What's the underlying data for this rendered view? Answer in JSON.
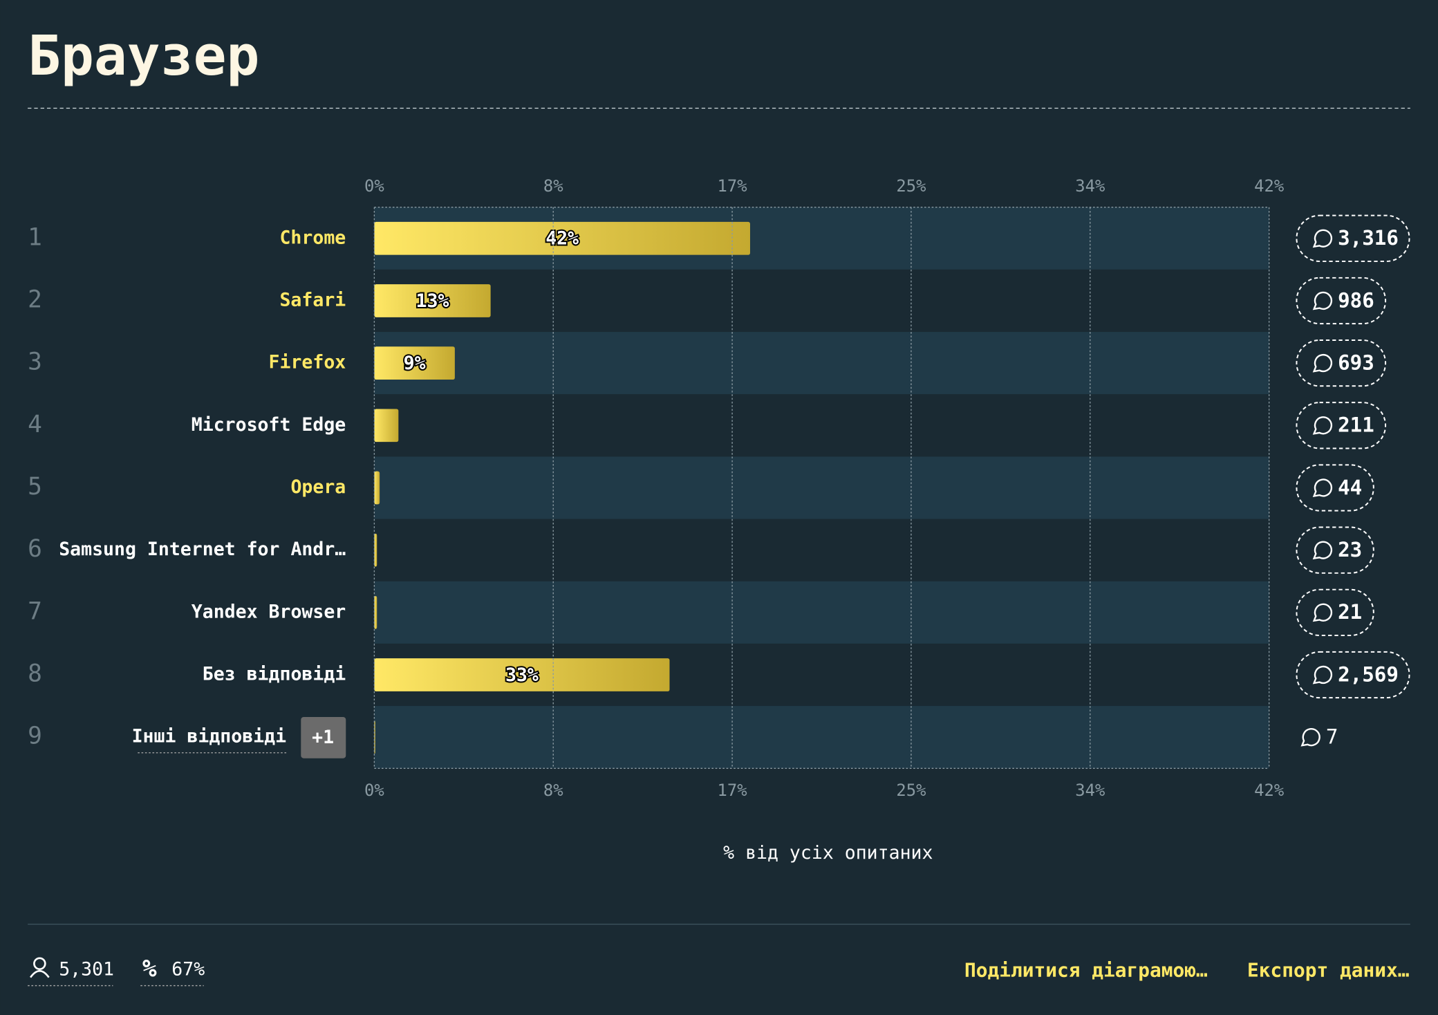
{
  "title": "Браузер",
  "chart_data": {
    "type": "bar",
    "orientation": "horizontal",
    "ranks": [
      "1",
      "2",
      "3",
      "4",
      "5",
      "6",
      "7",
      "8",
      "9"
    ],
    "categories": [
      "Chrome",
      "Safari",
      "Firefox",
      "Microsoft Edge",
      "Opera",
      "Samsung Internet for Andr…",
      "Yandex Browser",
      "Без відповіді",
      "Інші відповіді"
    ],
    "highlight": [
      true,
      true,
      true,
      false,
      true,
      false,
      false,
      false,
      false
    ],
    "values": [
      42,
      13,
      9,
      2.7,
      0.6,
      0.3,
      0.3,
      33,
      0.1
    ],
    "value_labels": [
      "42%",
      "13%",
      "9%",
      null,
      null,
      null,
      null,
      "33%",
      null
    ],
    "counts": [
      "3,316",
      "986",
      "693",
      "211",
      "44",
      "23",
      "21",
      "2,569",
      "7"
    ],
    "others_extra": "+1",
    "color": [
      "#ffe866",
      "#c4a930"
    ],
    "xlim": [
      0,
      100
    ],
    "xticks": [
      {
        "value": 0,
        "label": "0%"
      },
      {
        "value": 20,
        "label": "8%"
      },
      {
        "value": 40,
        "label": "17%"
      },
      {
        "value": 60,
        "label": "25%"
      },
      {
        "value": 80,
        "label": "34%"
      },
      {
        "value": 100,
        "label": "42%"
      }
    ],
    "xlabel": "% від усіх опитаних",
    "grid": true
  },
  "footer": {
    "respondents": "5,301",
    "percent": "67%",
    "share": "Поділитися діаграмою…",
    "export": "Експорт даних…"
  }
}
